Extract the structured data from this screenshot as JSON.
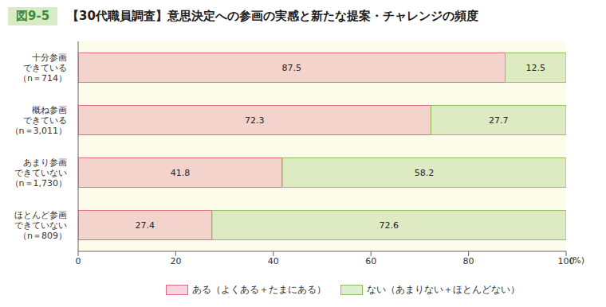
{
  "chart_data": {
    "type": "bar",
    "figure_label": "図9-5",
    "title": "【30代職員調査】意思決定への参画の実感と新たな提案・チャレンジの頻度",
    "orientation": "horizontal",
    "stacked": true,
    "data_labels": true,
    "grid": false,
    "categories": [
      "十分参画\nできている\n（n＝714）",
      "概ね参画\nできている\n（n＝3,011）",
      "あまり参画\nできていない\n（n＝1,730）",
      "ほとんど参画\nできていない\n（n＝809）"
    ],
    "series": [
      {
        "name": "ある（よくある＋たまにある）",
        "color": "#e06a82",
        "values": [
          87.5,
          72.3,
          41.8,
          27.4
        ]
      },
      {
        "name": "ない（あまりない＋ほとんどない）",
        "color": "#8cbf5a",
        "values": [
          12.5,
          27.7,
          58.2,
          72.6
        ]
      }
    ],
    "xlim": [
      0,
      100
    ],
    "xticks": [
      0,
      20,
      40,
      60,
      80,
      100
    ],
    "xlabel": "(%)"
  }
}
